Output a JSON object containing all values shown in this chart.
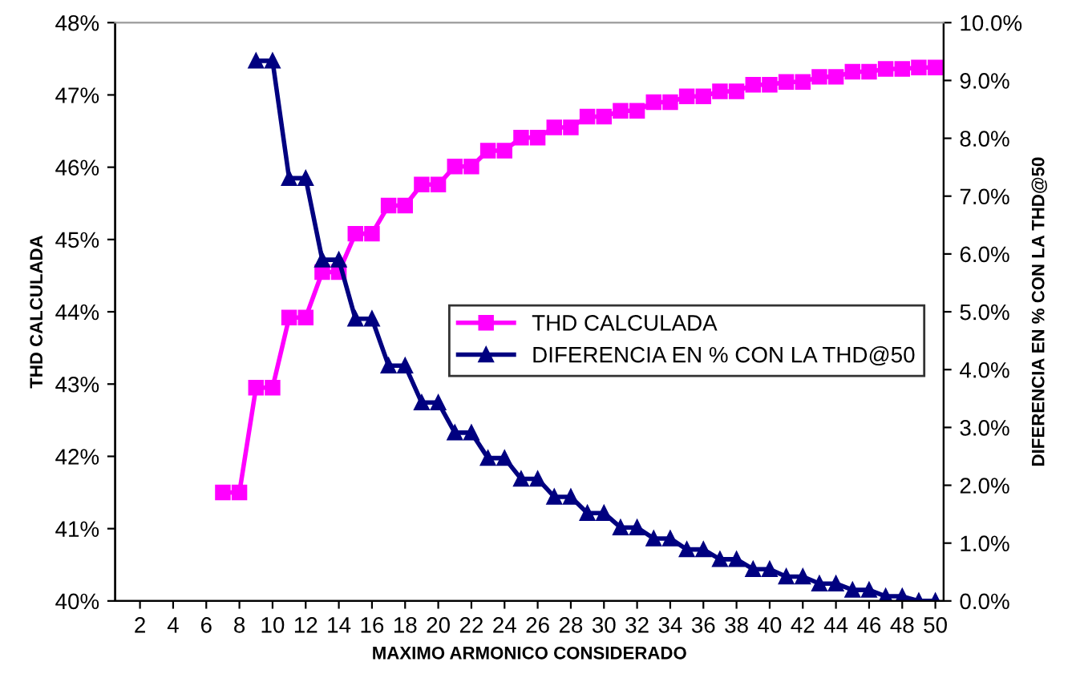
{
  "chart_data": {
    "type": "line",
    "xlabel": "MAXIMO ARMONICO CONSIDERADO",
    "ylabel": "THD CALCULADA",
    "y2label": "DIFERENCIA EN % CON LA THD@50",
    "x": [
      7,
      8,
      9,
      10,
      11,
      12,
      13,
      14,
      15,
      16,
      17,
      18,
      19,
      20,
      21,
      22,
      23,
      24,
      25,
      26,
      27,
      28,
      29,
      30,
      31,
      32,
      33,
      34,
      35,
      36,
      37,
      38,
      39,
      40,
      41,
      42,
      43,
      44,
      45,
      46,
      47,
      48,
      49,
      50
    ],
    "xlim": [
      0.5,
      50.5
    ],
    "xticks": [
      2,
      4,
      6,
      8,
      10,
      12,
      14,
      16,
      18,
      20,
      22,
      24,
      26,
      28,
      30,
      32,
      34,
      36,
      38,
      40,
      42,
      44,
      46,
      48,
      50
    ],
    "ylim": [
      40,
      48
    ],
    "yticks": [
      {
        "value": 40,
        "label": "40%"
      },
      {
        "value": 41,
        "label": "41%"
      },
      {
        "value": 42,
        "label": "42%"
      },
      {
        "value": 43,
        "label": "43%"
      },
      {
        "value": 44,
        "label": "44%"
      },
      {
        "value": 45,
        "label": "45%"
      },
      {
        "value": 46,
        "label": "46%"
      },
      {
        "value": 47,
        "label": "47%"
      },
      {
        "value": 48,
        "label": "48%"
      }
    ],
    "y2lim": [
      0,
      10
    ],
    "y2ticks": [
      {
        "value": 0,
        "label": "0.0%"
      },
      {
        "value": 1,
        "label": "1.0%"
      },
      {
        "value": 2,
        "label": "2.0%"
      },
      {
        "value": 3,
        "label": "3.0%"
      },
      {
        "value": 4,
        "label": "4.0%"
      },
      {
        "value": 5,
        "label": "5.0%"
      },
      {
        "value": 6,
        "label": "6.0%"
      },
      {
        "value": 7,
        "label": "7.0%"
      },
      {
        "value": 8,
        "label": "8.0%"
      },
      {
        "value": 9,
        "label": "9.0%"
      },
      {
        "value": 10,
        "label": "10.0%"
      }
    ],
    "grid": false,
    "legend": "center right",
    "line_style": "solid",
    "series": [
      {
        "name": "THD CALCULADA",
        "color": "#ff00ff",
        "marker": "square",
        "values": [
          41.5,
          41.5,
          42.95,
          42.95,
          43.92,
          43.92,
          44.55,
          44.55,
          45.08,
          45.08,
          45.47,
          45.47,
          45.76,
          45.76,
          46.01,
          46.01,
          46.23,
          46.23,
          46.41,
          46.41,
          46.55,
          46.55,
          46.7,
          46.7,
          46.78,
          46.78,
          46.9,
          46.9,
          46.98,
          46.98,
          47.05,
          47.05,
          47.14,
          47.14,
          47.18,
          47.18,
          47.25,
          47.25,
          47.32,
          47.32,
          47.36,
          47.36,
          47.38,
          47.38
        ]
      },
      {
        "name": "DIFERENCIA EN % CON LA THD@50",
        "color": "#000080",
        "marker": "triangle",
        "axis": "y2",
        "values": [
          null,
          null,
          9.34,
          9.34,
          7.31,
          7.31,
          5.9,
          5.9,
          4.88,
          4.88,
          4.07,
          4.07,
          3.43,
          3.43,
          2.91,
          2.91,
          2.47,
          2.47,
          2.11,
          2.11,
          1.8,
          1.8,
          1.52,
          1.52,
          1.27,
          1.27,
          1.08,
          1.08,
          0.89,
          0.89,
          0.72,
          0.72,
          0.55,
          0.55,
          0.42,
          0.42,
          0.3,
          0.3,
          0.19,
          0.19,
          0.08,
          0.08,
          0.0,
          0.0
        ]
      }
    ]
  }
}
